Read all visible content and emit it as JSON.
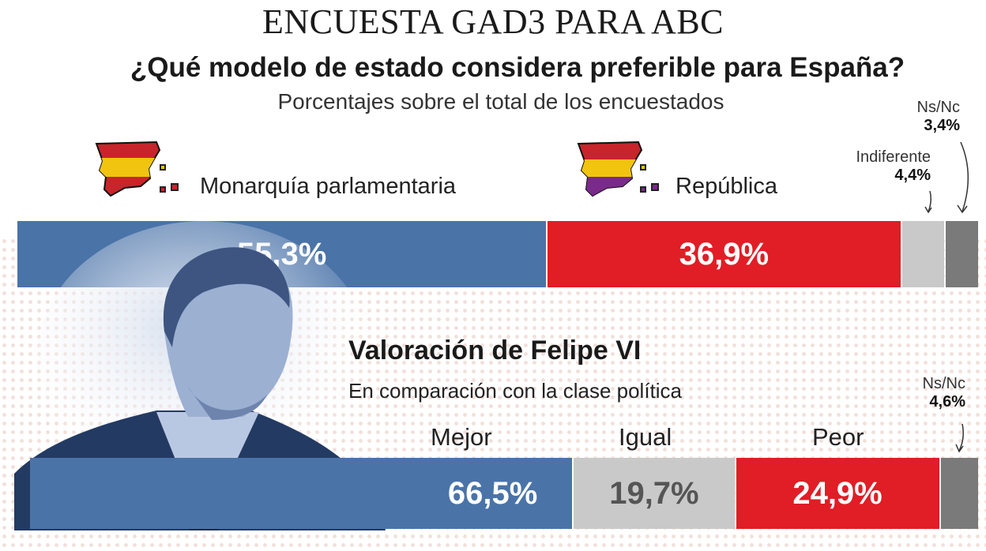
{
  "header": {
    "title": "ENCUESTA GAD3 PARA ABC",
    "question": "¿Qué modelo de estado considera preferible para España?",
    "subtitle": "Porcentajes sobre el total de los encuestados"
  },
  "colors": {
    "blue": "#4a73a8",
    "red": "#e11d26",
    "light_gray": "#c9c9c9",
    "dark_gray": "#7a7a7a",
    "purple": "#7a2a8a",
    "yellow": "#f1c40f"
  },
  "icons": [
    "spain-flag-map-icon",
    "republic-flag-map-icon",
    "arrow-icon"
  ],
  "chart_data": [
    {
      "type": "bar",
      "stacked": true,
      "orientation": "horizontal",
      "title": "¿Qué modelo de estado considera preferible para España?",
      "categories": [
        "Monarquía parlamentaria",
        "República",
        "Indiferente",
        "Ns/Nc"
      ],
      "values": [
        55.3,
        36.9,
        4.4,
        3.4
      ],
      "labels": [
        "55,3%",
        "36,9%",
        "4,4%",
        "3,4%"
      ],
      "colors": [
        "#4a73a8",
        "#e11d26",
        "#c9c9c9",
        "#7a7a7a"
      ]
    },
    {
      "type": "bar",
      "stacked": true,
      "orientation": "horizontal",
      "title": "Valoración de Felipe VI",
      "subtitle": "En comparación con la clase política",
      "categories": [
        "Mejor",
        "Igual",
        "Peor",
        "Ns/Nc"
      ],
      "values": [
        66.5,
        19.7,
        24.9,
        4.6
      ],
      "labels": [
        "66,5%",
        "19,7%",
        "24,9%",
        "4,6%"
      ],
      "colors": [
        "#4a73a8",
        "#c9c9c9",
        "#e11d26",
        "#7a7a7a"
      ]
    }
  ],
  "felipe": {
    "title": "Valoración de Felipe VI",
    "subtitle": "En comparación con la clase política"
  }
}
